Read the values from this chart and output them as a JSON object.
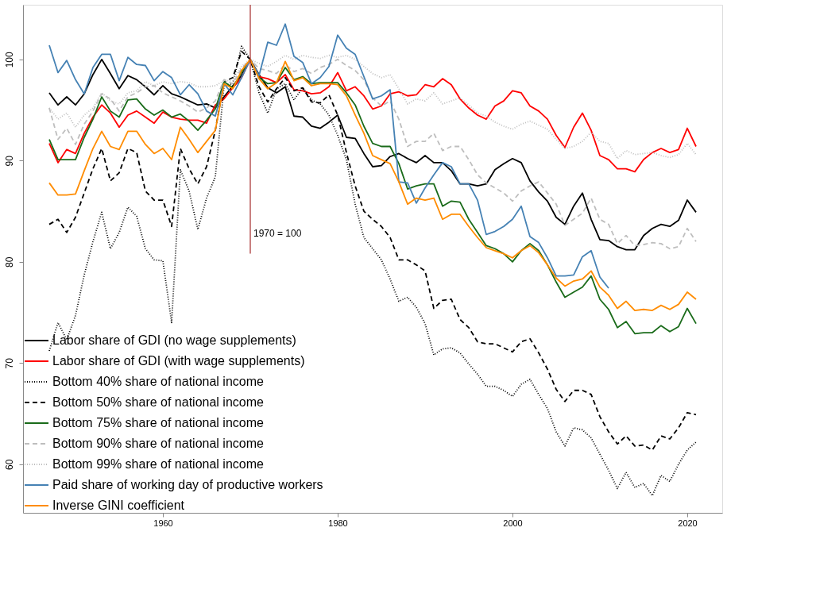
{
  "chart_data": {
    "type": "line",
    "x": [
      1947,
      1948,
      1949,
      1950,
      1951,
      1952,
      1953,
      1954,
      1955,
      1956,
      1957,
      1958,
      1959,
      1960,
      1961,
      1962,
      1963,
      1964,
      1965,
      1966,
      1967,
      1968,
      1969,
      1970,
      1971,
      1972,
      1973,
      1974,
      1975,
      1976,
      1977,
      1978,
      1979,
      1980,
      1981,
      1982,
      1983,
      1984,
      1985,
      1986,
      1987,
      1988,
      1989,
      1990,
      1991,
      1992,
      1993,
      1994,
      1995,
      1996,
      1997,
      1998,
      1999,
      2000,
      2001,
      2002,
      2003,
      2004,
      2005,
      2006,
      2007,
      2008,
      2009,
      2010,
      2011,
      2012,
      2013,
      2014,
      2015,
      2016,
      2017,
      2018,
      2019,
      2020,
      2021
    ],
    "xlim": [
      1944,
      2024
    ],
    "xticks": [
      1960,
      1980,
      2000,
      2020
    ],
    "ylim": [
      55.2,
      105.4
    ],
    "yticks": [
      60,
      70,
      80,
      90,
      100
    ],
    "grid": false,
    "legend": "bottom left",
    "ref_lines": [
      {
        "axis": "x",
        "value": 1970,
        "label": "1970 = 100",
        "color": "#a52a2a"
      }
    ],
    "series": [
      {
        "name": "Labor share of GDI (no wage supplements)",
        "color": "#000000",
        "line_style": "solid",
        "values": [
          96.7,
          95.5,
          96.3,
          95.5,
          96.6,
          98.5,
          100,
          98.6,
          97.1,
          98.4,
          98,
          97.3,
          96.5,
          97.4,
          96.6,
          96.3,
          95.9,
          95.5,
          95.6,
          95.2,
          96.3,
          97.4,
          98.4,
          100,
          98.5,
          97.2,
          96.7,
          97.3,
          94.4,
          94.3,
          93.4,
          93.2,
          93.8,
          94.5,
          92.3,
          92.2,
          90.7,
          89.4,
          89.5,
          90.4,
          90.7,
          90.2,
          89.8,
          90.5,
          89.8,
          89.8,
          89.0,
          87.7,
          87.7,
          87.5,
          87.7,
          89.1,
          89.7,
          90.2,
          89.8,
          88,
          86.9,
          86,
          84.4,
          83.7,
          85.5,
          86.8,
          84.2,
          82.2,
          82.1,
          81.5,
          81.2,
          81.2,
          82.6,
          83.3,
          83.7,
          83.5,
          84.1,
          86.1,
          84.9
        ]
      },
      {
        "name": "Labor share of GDI (with wage supplements)",
        "color": "#ff0000",
        "line_style": "solid",
        "values": [
          91.7,
          89.8,
          91.1,
          90.7,
          92.7,
          94.3,
          95.5,
          94.7,
          93.3,
          94.5,
          94.9,
          94.3,
          93.7,
          94.8,
          94.3,
          94.1,
          94,
          94,
          93.7,
          95.5,
          96.1,
          97.2,
          98.2,
          100,
          98.3,
          98.1,
          97.7,
          98.5,
          97,
          96.9,
          96.6,
          96.7,
          97.3,
          98.7,
          96.9,
          97.3,
          96.4,
          95.1,
          95.4,
          96.6,
          96.8,
          96.4,
          96.5,
          97.5,
          97.3,
          98.1,
          97.5,
          96.1,
          95.2,
          94.5,
          94.1,
          95.4,
          95.9,
          96.9,
          96.7,
          95.4,
          94.9,
          94.1,
          92.5,
          91.3,
          93.3,
          94.7,
          93,
          90.5,
          90.1,
          89.2,
          89.2,
          88.9,
          90.1,
          90.8,
          91.2,
          90.8,
          91.1,
          93.2,
          91.4
        ]
      },
      {
        "name": "Bottom 40% share of national income",
        "color": "#000000",
        "line_style": "dotted",
        "values": [
          71.2,
          74,
          72.3,
          74.7,
          78.7,
          82,
          84.9,
          81.3,
          82.9,
          85.4,
          84.5,
          81.3,
          80.2,
          80.1,
          74,
          89.1,
          87,
          83.2,
          86.3,
          88.4,
          97.4,
          97.6,
          101.3,
          100,
          96.7,
          94.7,
          97.1,
          97.6,
          96,
          97.2,
          96,
          95.6,
          94.5,
          92.5,
          90.1,
          85.7,
          82.4,
          81.3,
          80.2,
          78.3,
          76.1,
          76.5,
          75.5,
          73.9,
          70.8,
          71.4,
          71.5,
          71,
          69.9,
          68.9,
          67.7,
          67.7,
          67.3,
          66.7,
          67.9,
          68.4,
          66.9,
          65.5,
          63.2,
          61.8,
          63.6,
          63.4,
          62.6,
          61,
          59.4,
          57.6,
          59.2,
          57.7,
          58.1,
          56.9,
          58.9,
          58.3,
          60,
          61.4,
          62.2
        ]
      },
      {
        "name": "Bottom 50% share of national income",
        "color": "#000000",
        "line_style": "dashed",
        "values": [
          83.7,
          84.2,
          82.9,
          84.4,
          86.8,
          89.2,
          91.2,
          88,
          88.8,
          91.2,
          90.8,
          87,
          86.1,
          86.1,
          83.5,
          91.2,
          89.2,
          87.7,
          89.4,
          93,
          97.8,
          98.2,
          100.8,
          100,
          97.3,
          95.8,
          97.1,
          98.2,
          96.9,
          97.2,
          95.8,
          95.7,
          96.5,
          94.5,
          90.8,
          87.5,
          85,
          84.2,
          83.5,
          82.4,
          80.2,
          80.2,
          79.7,
          79.1,
          75.4,
          76.2,
          76.3,
          74.3,
          73.5,
          72.1,
          71.9,
          71.9,
          71.5,
          71.1,
          72.1,
          72.4,
          71,
          69.4,
          67.4,
          66.2,
          67.3,
          67.3,
          66.9,
          64.7,
          63.2,
          62,
          62.8,
          61.8,
          61.9,
          61.4,
          62.8,
          62.5,
          63.6,
          65.1,
          64.9
        ]
      },
      {
        "name": "Bottom 75% share of national income",
        "color": "#1a6b1a",
        "line_style": "solid",
        "values": [
          92.1,
          90.1,
          90.1,
          90.1,
          92.3,
          94.1,
          96.3,
          94.9,
          94.3,
          96,
          96.1,
          95.1,
          94.5,
          95,
          94.3,
          94.6,
          93.9,
          93,
          94,
          95.1,
          97.8,
          97.2,
          98.7,
          100,
          98.2,
          97.6,
          97.7,
          99.2,
          98,
          98.3,
          97.6,
          97.7,
          97.7,
          97.7,
          96.7,
          95.5,
          93.4,
          91.7,
          91.4,
          91.4,
          89.7,
          87.2,
          87.5,
          87.7,
          87.7,
          85.5,
          86,
          85.9,
          84.2,
          82.9,
          81.6,
          81.3,
          80.8,
          80,
          81.1,
          81.8,
          81.1,
          79.7,
          78,
          76.5,
          77,
          77.5,
          78.6,
          76.3,
          75.3,
          73.5,
          74.1,
          72.9,
          73,
          73,
          73.7,
          73.1,
          73.6,
          75.4,
          73.9
        ]
      },
      {
        "name": "Bottom 90% share of national income",
        "color": "#bebebe",
        "line_style": "dashed",
        "values": [
          95.2,
          92.1,
          93.2,
          91.6,
          93.6,
          94.9,
          96.6,
          96.1,
          94.9,
          96.3,
          96.7,
          97.3,
          97.4,
          96.7,
          96.3,
          95.9,
          95.4,
          94.8,
          95.2,
          95.9,
          98,
          97.6,
          99.1,
          100,
          99.1,
          98.9,
          98.6,
          99.5,
          98.8,
          99.1,
          98.6,
          99.2,
          99.5,
          100,
          99.4,
          98.9,
          98,
          96.2,
          95.4,
          95.9,
          94.1,
          91.4,
          91.9,
          91.9,
          92.7,
          91,
          91.4,
          91.4,
          90.1,
          88.6,
          87.8,
          87.3,
          86.8,
          86,
          87,
          87.5,
          87.9,
          86.8,
          85.7,
          83.6,
          84.2,
          84.8,
          86.3,
          84.2,
          83.7,
          81.8,
          82.6,
          81.6,
          81.7,
          81.9,
          81.8,
          81.3,
          81.5,
          83.3,
          82
        ]
      },
      {
        "name": "Bottom 99% share of national income",
        "color": "#bebebe",
        "line_style": "dotted",
        "values": [
          95.2,
          94.1,
          94.7,
          93.3,
          94.5,
          95.2,
          96.7,
          95.9,
          95.6,
          96.7,
          96.9,
          97.8,
          97.4,
          97.8,
          97.6,
          97.8,
          97.7,
          97.3,
          97.3,
          97.4,
          97.9,
          97.9,
          99.3,
          100,
          99.6,
          99.3,
          99.8,
          100.4,
          100,
          100.4,
          100.2,
          100.1,
          100.4,
          100.2,
          100.4,
          100,
          99.3,
          98.6,
          98.2,
          98.5,
          97.1,
          95.6,
          96.1,
          95.9,
          96.7,
          95.6,
          95.9,
          96.2,
          95.5,
          94.7,
          94.4,
          93.8,
          93.4,
          93.1,
          93.6,
          93.9,
          93.5,
          93.1,
          92.1,
          91.2,
          91.4,
          91.9,
          92.8,
          91.9,
          91.7,
          90.2,
          91,
          90.6,
          90.7,
          90.8,
          90.5,
          90.3,
          90.6,
          91.7,
          90.6
        ]
      },
      {
        "name": "Paid share of working day of productive workers",
        "color": "#4682b4",
        "line_style": "solid",
        "values": [
          101.4,
          98.7,
          99.9,
          98,
          96.6,
          99.2,
          100.5,
          100.5,
          97.9,
          100.2,
          99.5,
          99.4,
          97.9,
          98.8,
          98.2,
          96.5,
          97.5,
          96.6,
          94.9,
          94.4,
          97.6,
          96.5,
          98.2,
          100,
          98.4,
          101.7,
          101.4,
          103.5,
          100.3,
          99.7,
          97.6,
          98.2,
          99.3,
          102.4,
          101.1,
          100.5,
          98.3,
          96.1,
          96.4,
          97,
          87.9,
          87.8,
          85.8,
          87.3,
          88.6,
          89.8,
          89.4,
          87.7,
          87.7,
          86.1,
          82.7,
          83,
          83.5,
          84.2,
          85.5,
          82.5,
          81.9,
          80.4,
          78.6,
          78.6,
          78.7,
          80.5,
          81.1,
          78.5,
          77.4,
          null,
          null,
          null,
          null,
          null,
          null,
          null,
          null,
          null,
          null
        ]
      },
      {
        "name": "Inverse GINI coefficient",
        "color": "#ff8c00",
        "line_style": "solid",
        "values": [
          87.8,
          86.6,
          86.6,
          86.7,
          89,
          91.2,
          92.9,
          91.4,
          91.1,
          92.9,
          92.9,
          91.6,
          90.7,
          91.2,
          90.1,
          93.3,
          92.1,
          90.8,
          91.9,
          93,
          97.6,
          97.1,
          98.9,
          100,
          98.1,
          97.1,
          97.7,
          99.8,
          97.9,
          98.2,
          97.4,
          97.6,
          97.6,
          97.5,
          96.4,
          94.5,
          92.7,
          90.5,
          90.1,
          89.7,
          87.9,
          85.7,
          86.3,
          86.1,
          86.3,
          84.2,
          84.7,
          84.7,
          83.5,
          82.4,
          81.4,
          81.1,
          80.8,
          80.4,
          81.1,
          81.6,
          80.9,
          79.7,
          78.4,
          77.6,
          78.1,
          78.3,
          79.1,
          77.5,
          76.7,
          75.4,
          76.1,
          75.2,
          75.3,
          75.2,
          75.7,
          75.3,
          75.8,
          77,
          76.3
        ]
      }
    ]
  }
}
